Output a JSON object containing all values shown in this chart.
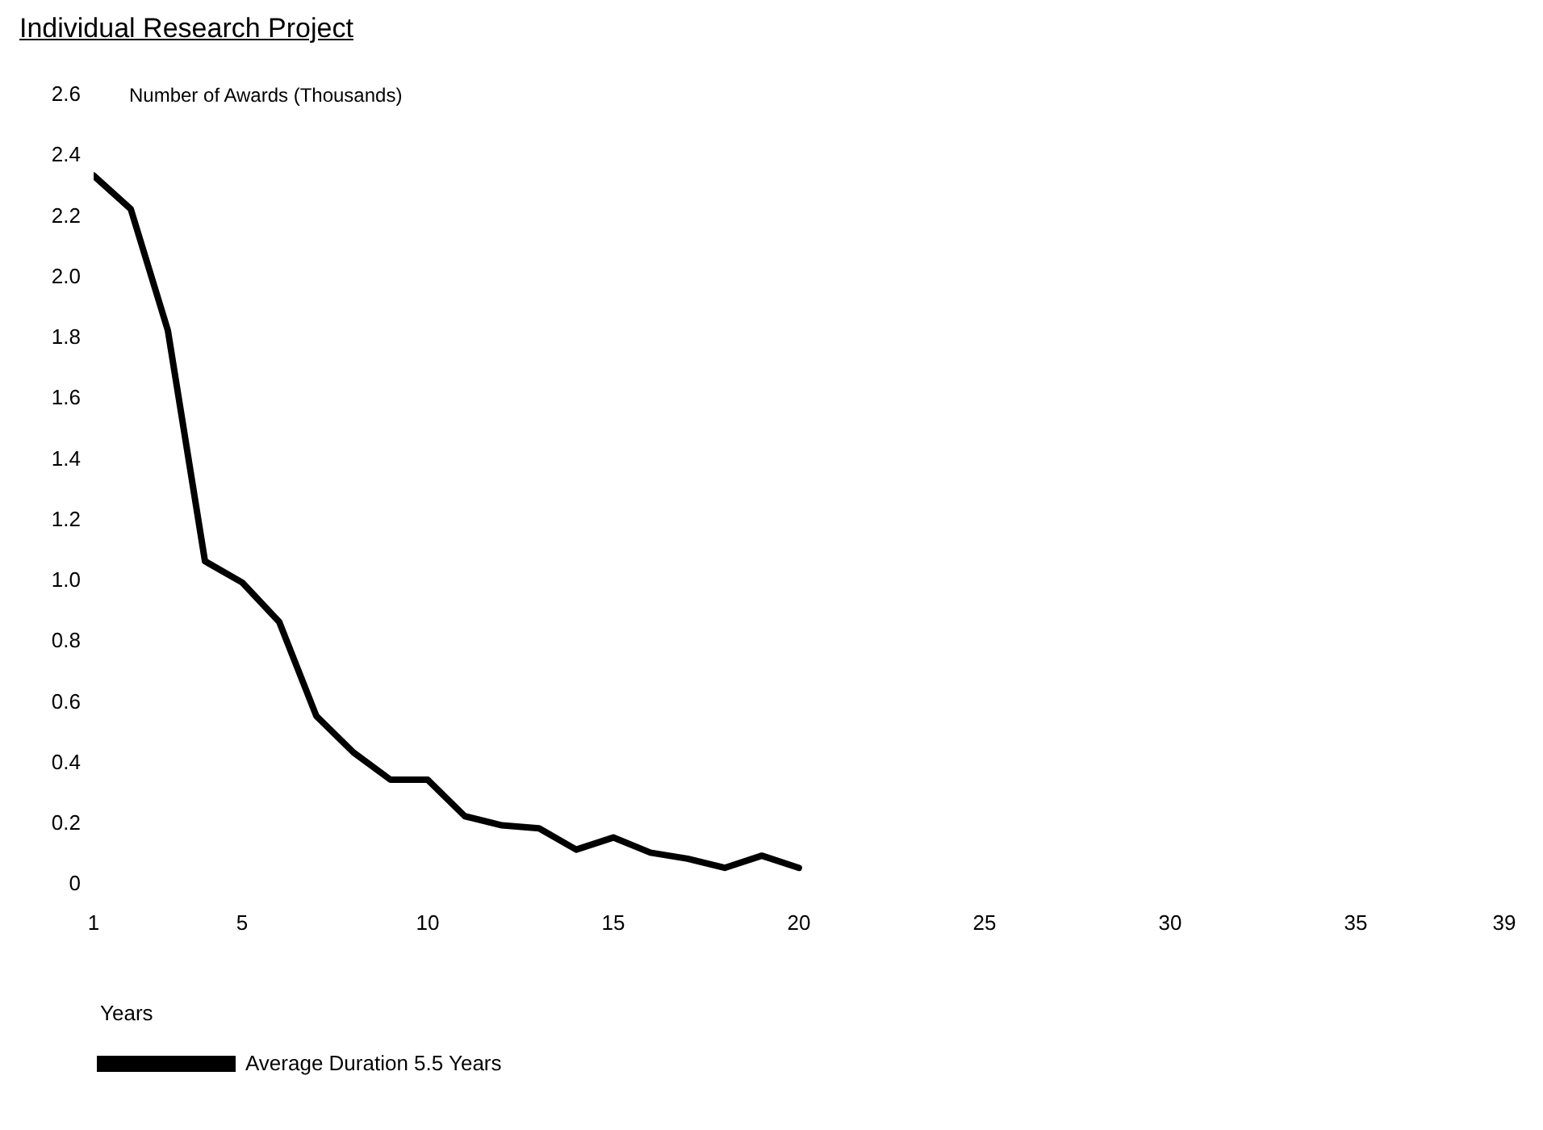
{
  "chart_data": {
    "type": "line",
    "title": "Individual Research Project",
    "ylabel": "Number of Awards (Thousands)",
    "xlabel": "Years",
    "x": [
      1,
      2,
      3,
      4,
      5,
      6,
      7,
      8,
      9,
      10,
      11,
      12,
      13,
      14,
      15,
      16,
      17,
      18,
      19,
      20
    ],
    "series": [
      {
        "name": "Average Duration 5.5 Years",
        "color": "#000000",
        "values": [
          2.33,
          2.22,
          1.82,
          1.06,
          0.99,
          0.86,
          0.55,
          0.43,
          0.34,
          0.34,
          0.22,
          0.19,
          0.18,
          0.11,
          0.15,
          0.1,
          0.08,
          0.05,
          0.09,
          0.05
        ]
      }
    ],
    "xlim": [
      1,
      39
    ],
    "xticks": [
      1,
      5,
      10,
      15,
      20,
      25,
      30,
      35,
      39
    ],
    "ylim": [
      0,
      2.6
    ],
    "yticks": [
      0,
      0.2,
      0.4,
      0.6,
      0.8,
      {
        "value": 1,
        "label": "1.0"
      },
      1.2,
      1.4,
      1.6,
      1.8,
      {
        "value": 2,
        "label": "2.0"
      },
      2.2,
      2.4,
      2.6
    ],
    "grid": false,
    "legend": "bottom left",
    "marker": "none",
    "line_style": "solid"
  }
}
